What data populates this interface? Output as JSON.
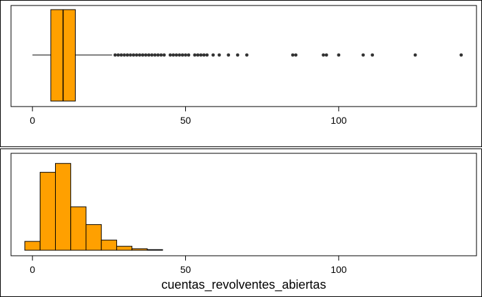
{
  "chart_data": [
    {
      "type": "boxplot",
      "orientation": "horizontal",
      "fill_color": "#FFA000",
      "stroke_color": "#000000",
      "outlier_color": "#333333",
      "xlim": [
        -7,
        145
      ],
      "x_ticks": [
        0,
        50,
        100
      ],
      "x_tick_labels": [
        "0",
        "50",
        "100"
      ],
      "box": {
        "whisker_low": 0,
        "q1": 6,
        "median": 10,
        "q3": 14,
        "whisker_high": 26
      },
      "outliers": [
        27,
        28,
        29,
        30,
        31,
        32,
        33,
        34,
        35,
        36,
        37,
        38,
        39,
        40,
        41,
        42,
        43,
        45,
        46,
        47,
        48,
        49,
        50,
        51,
        53,
        54,
        55,
        56,
        57,
        59,
        61,
        64,
        67,
        70,
        85,
        86,
        95,
        96,
        100,
        108,
        111,
        125,
        140
      ]
    },
    {
      "type": "histogram",
      "fill_color": "#FFA000",
      "stroke_color": "#000000",
      "xlim": [
        -7,
        145
      ],
      "x_ticks": [
        0,
        50,
        100
      ],
      "x_tick_labels": [
        "0",
        "50",
        "100"
      ],
      "xlabel": "cuentas_revolventes_abiertas",
      "bin_width": 5,
      "bins": [
        {
          "start": -2.5,
          "end": 2.5,
          "count": 1000
        },
        {
          "start": 2.5,
          "end": 7.5,
          "count": 8800
        },
        {
          "start": 7.5,
          "end": 12.5,
          "count": 9800
        },
        {
          "start": 12.5,
          "end": 17.5,
          "count": 4900
        },
        {
          "start": 17.5,
          "end": 22.5,
          "count": 2900
        },
        {
          "start": 22.5,
          "end": 27.5,
          "count": 1150
        },
        {
          "start": 27.5,
          "end": 32.5,
          "count": 450
        },
        {
          "start": 32.5,
          "end": 37.5,
          "count": 170
        },
        {
          "start": 37.5,
          "end": 42.5,
          "count": 70
        },
        {
          "start": 42.5,
          "end": 142.5,
          "count": 0
        }
      ],
      "ylim": [
        0,
        10400
      ]
    }
  ]
}
